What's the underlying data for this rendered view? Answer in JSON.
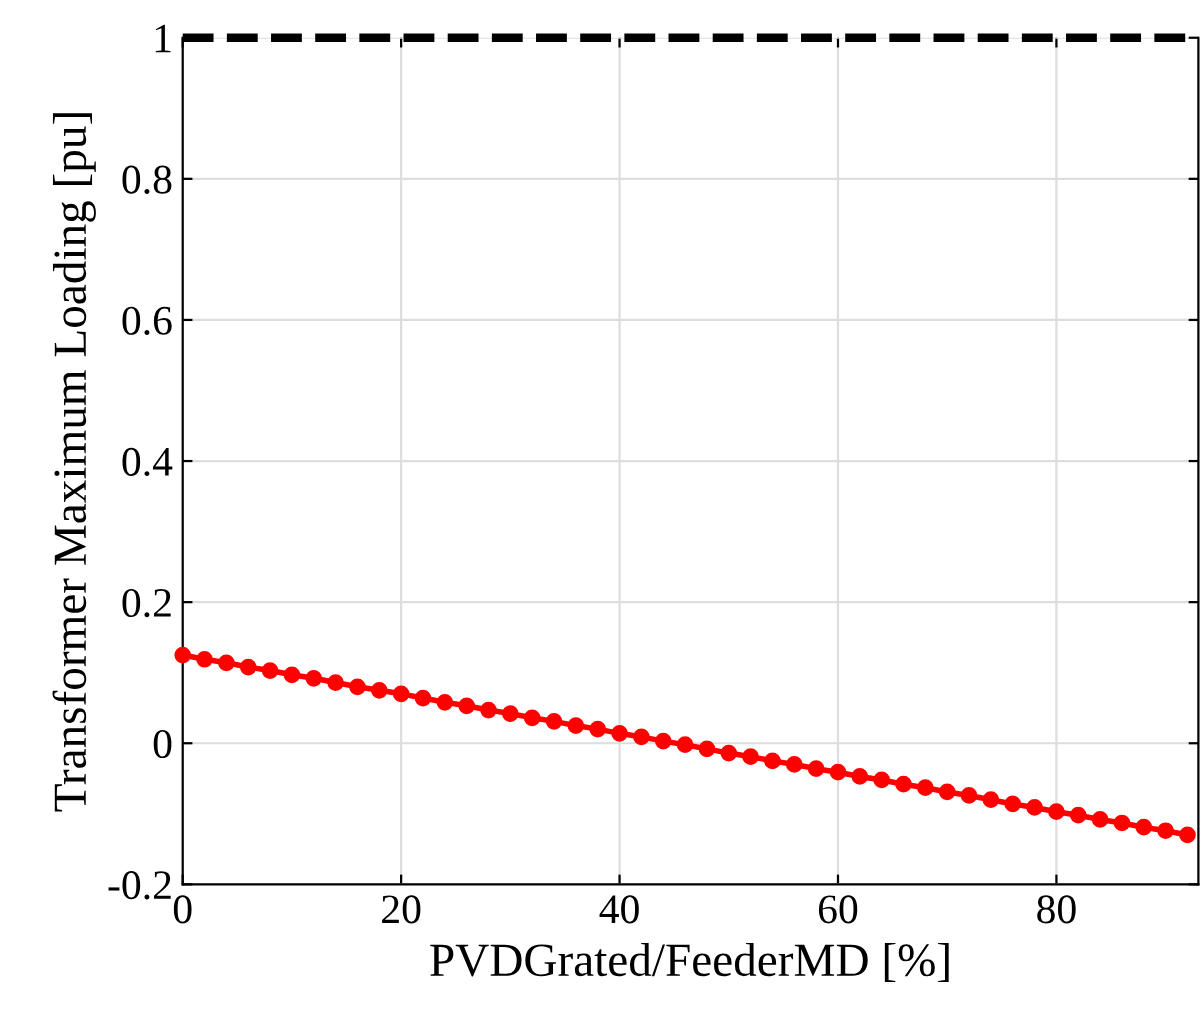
{
  "chart_data": {
    "type": "line",
    "xlabel": "PVDGrated/FeederMD [%]",
    "ylabel": "Transformer Maximum Loading [pu]",
    "xlim": [
      0,
      93
    ],
    "ylim": [
      -0.2,
      1
    ],
    "xticks": [
      0,
      20,
      40,
      60,
      80
    ],
    "yticks": [
      -0.2,
      0,
      0.2,
      0.4,
      0.6,
      0.8,
      1
    ],
    "grid": true,
    "marker": "circle",
    "line_style": "solid",
    "series": [
      {
        "color": "#ff0000",
        "x": [
          0,
          2,
          4,
          6,
          8,
          10,
          12,
          14,
          16,
          18,
          20,
          22,
          24,
          26,
          28,
          30,
          32,
          34,
          36,
          38,
          40,
          42,
          44,
          46,
          48,
          50,
          52,
          54,
          56,
          58,
          60,
          62,
          64,
          66,
          68,
          70,
          72,
          74,
          76,
          78,
          80,
          82,
          84,
          86,
          88,
          90,
          92
        ],
        "values": [
          0.125,
          0.119,
          0.114,
          0.108,
          0.103,
          0.097,
          0.092,
          0.086,
          0.08,
          0.075,
          0.07,
          0.064,
          0.058,
          0.053,
          0.047,
          0.042,
          0.036,
          0.031,
          0.025,
          0.02,
          0.014,
          0.009,
          0.003,
          -0.002,
          -0.008,
          -0.014,
          -0.019,
          -0.025,
          -0.03,
          -0.036,
          -0.041,
          -0.047,
          -0.052,
          -0.058,
          -0.063,
          -0.069,
          -0.074,
          -0.08,
          -0.086,
          -0.091,
          -0.097,
          -0.102,
          -0.108,
          -0.113,
          -0.119,
          -0.124,
          -0.13
        ]
      }
    ],
    "ref_lines": [
      {
        "axis": "y",
        "value": 1,
        "color": "#000000",
        "line_style": "dashed"
      }
    ]
  }
}
